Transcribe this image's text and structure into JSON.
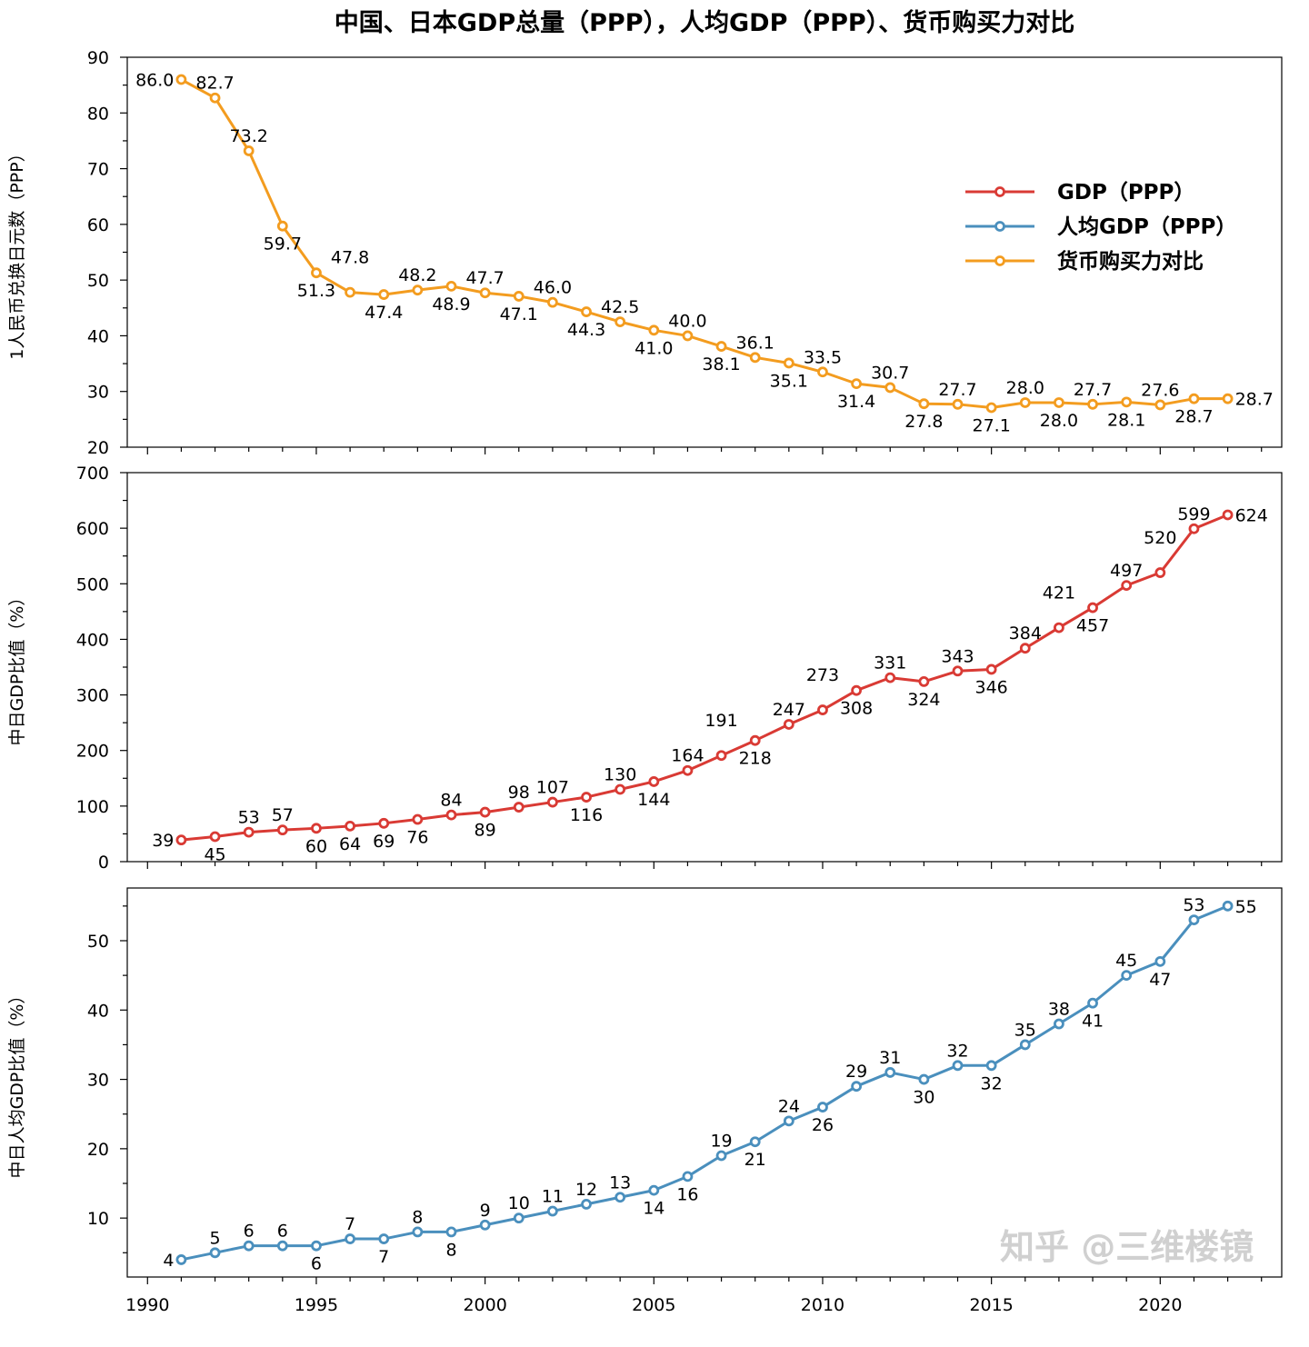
{
  "chart_data": {
    "type": "line",
    "title": "中国、日本GDP总量（PPP），人均GDP（PPP）、货币购买力对比",
    "x": [
      1991,
      1992,
      1993,
      1994,
      1995,
      1996,
      1997,
      1998,
      1999,
      2000,
      2001,
      2002,
      2003,
      2004,
      2005,
      2006,
      2007,
      2008,
      2009,
      2010,
      2011,
      2012,
      2013,
      2014,
      2015,
      2016,
      2017,
      2018,
      2019,
      2020,
      2021,
      2022
    ],
    "xlim": [
      1989.4,
      2023.6
    ],
    "xticks": [
      1990,
      1995,
      2000,
      2005,
      2010,
      2015,
      2020
    ],
    "legend_placement": "upper-right of top panel",
    "grid": false,
    "panels": [
      {
        "ylabel": "1人民币兑换日元数（PPP）",
        "ylim": [
          20,
          90
        ],
        "yticks": [
          20,
          30,
          40,
          50,
          60,
          70,
          80,
          90
        ],
        "decimals": 1,
        "series": [
          {
            "name": "货币购买力对比",
            "color": "#f39c1f",
            "values": [
              86.0,
              82.7,
              73.2,
              59.7,
              51.3,
              47.8,
              47.4,
              48.2,
              48.9,
              47.7,
              47.1,
              46.0,
              44.3,
              42.5,
              41.0,
              40.0,
              38.1,
              36.1,
              35.1,
              33.5,
              31.4,
              30.7,
              27.8,
              27.7,
              27.1,
              28.0,
              28.0,
              27.7,
              28.1,
              27.6,
              28.7,
              28.7
            ]
          }
        ]
      },
      {
        "ylabel": "中日GDP比值（%）",
        "ylim": [
          0,
          700
        ],
        "yticks": [
          0,
          100,
          200,
          300,
          400,
          500,
          600,
          700
        ],
        "decimals": 0,
        "series": [
          {
            "name": "GDP（PPP）",
            "color": "#d93a34",
            "values": [
              39,
              45,
              53,
              57,
              60,
              64,
              69,
              76,
              84,
              89,
              98,
              107,
              116,
              130,
              144,
              164,
              191,
              218,
              247,
              273,
              308,
              331,
              324,
              343,
              346,
              384,
              421,
              457,
              497,
              520,
              599,
              624
            ]
          }
        ]
      },
      {
        "ylabel": "中日人均GDP比值（%）",
        "ylim": [
          1.5,
          57.6
        ],
        "yticks": [
          10,
          20,
          30,
          40,
          50
        ],
        "decimals": 0,
        "series": [
          {
            "name": "人均GDP（PPP）",
            "color": "#4a8fbd",
            "values": [
              4,
              5,
              6,
              6,
              6,
              7,
              7,
              8,
              8,
              9,
              10,
              11,
              12,
              13,
              14,
              16,
              19,
              21,
              24,
              26,
              29,
              31,
              30,
              32,
              32,
              35,
              38,
              41,
              45,
              47,
              53,
              55
            ]
          }
        ]
      }
    ],
    "legend": [
      {
        "name": "GDP（PPP）",
        "color": "#d93a34"
      },
      {
        "name": "人均GDP（PPP）",
        "color": "#4a8fbd"
      },
      {
        "name": "货币购买力对比",
        "color": "#f39c1f"
      }
    ]
  },
  "watermark": "知乎 @三维楼镜"
}
